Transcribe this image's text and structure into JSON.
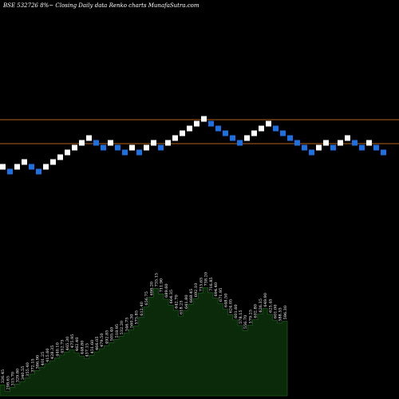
{
  "chart_data": {
    "type": "renko",
    "title": "BSE 532726  8%~  Closing Daily data  Renko  charts MunafaSutra.com",
    "colors": {
      "background": "#000000",
      "up_brick": "#ffffff",
      "down_brick": "#1e6fe0",
      "ref_line": "#b5651d",
      "volume_fill": "#0a2a0a",
      "volume_outline": "#1a5a1a"
    },
    "reference_lines": [
      150,
      180
    ],
    "bricks": [
      {
        "dir": "up",
        "level": 7
      },
      {
        "dir": "down",
        "level": 6
      },
      {
        "dir": "up",
        "level": 7
      },
      {
        "dir": "up",
        "level": 8
      },
      {
        "dir": "down",
        "level": 7
      },
      {
        "dir": "down",
        "level": 6
      },
      {
        "dir": "up",
        "level": 7
      },
      {
        "dir": "up",
        "level": 8
      },
      {
        "dir": "up",
        "level": 9
      },
      {
        "dir": "up",
        "level": 10
      },
      {
        "dir": "up",
        "level": 11
      },
      {
        "dir": "up",
        "level": 12
      },
      {
        "dir": "up",
        "level": 13
      },
      {
        "dir": "down",
        "level": 12
      },
      {
        "dir": "down",
        "level": 11
      },
      {
        "dir": "up",
        "level": 12
      },
      {
        "dir": "down",
        "level": 11
      },
      {
        "dir": "down",
        "level": 10
      },
      {
        "dir": "up",
        "level": 11
      },
      {
        "dir": "down",
        "level": 10
      },
      {
        "dir": "up",
        "level": 11
      },
      {
        "dir": "up",
        "level": 12
      },
      {
        "dir": "down",
        "level": 11
      },
      {
        "dir": "up",
        "level": 12
      },
      {
        "dir": "up",
        "level": 13
      },
      {
        "dir": "up",
        "level": 14
      },
      {
        "dir": "up",
        "level": 15
      },
      {
        "dir": "up",
        "level": 16
      },
      {
        "dir": "up",
        "level": 17
      },
      {
        "dir": "down",
        "level": 16
      },
      {
        "dir": "down",
        "level": 15
      },
      {
        "dir": "down",
        "level": 14
      },
      {
        "dir": "down",
        "level": 13
      },
      {
        "dir": "down",
        "level": 12
      },
      {
        "dir": "up",
        "level": 13
      },
      {
        "dir": "up",
        "level": 14
      },
      {
        "dir": "up",
        "level": 15
      },
      {
        "dir": "up",
        "level": 16
      },
      {
        "dir": "down",
        "level": 15
      },
      {
        "dir": "down",
        "level": 14
      },
      {
        "dir": "down",
        "level": 13
      },
      {
        "dir": "down",
        "level": 12
      },
      {
        "dir": "down",
        "level": 11
      },
      {
        "dir": "down",
        "level": 10
      },
      {
        "dir": "up",
        "level": 11
      },
      {
        "dir": "up",
        "level": 12
      },
      {
        "dir": "down",
        "level": 11
      },
      {
        "dir": "up",
        "level": 12
      },
      {
        "dir": "up",
        "level": 13
      },
      {
        "dir": "down",
        "level": 12
      },
      {
        "dir": "down",
        "level": 11
      },
      {
        "dir": "up",
        "level": 12
      },
      {
        "dir": "down",
        "level": 11
      },
      {
        "dir": "down",
        "level": 10
      }
    ],
    "volume_labels": [
      "326.45",
      "298.65",
      "315.70",
      "329.80",
      "340.55",
      "355.40",
      "372.15",
      "386.90",
      "401.25",
      "415.60",
      "428.35",
      "440.10",
      "452.75",
      "465.30",
      "475.95",
      "462.40",
      "448.80",
      "437.15",
      "451.60",
      "466.05",
      "479.50",
      "492.85",
      "505.40",
      "518.95",
      "532.20",
      "546.75",
      "560.30",
      "575.85",
      "612.40",
      "656.75",
      "698.20",
      "735.15",
      "711.90",
      "689.60",
      "664.35",
      "642.70",
      "618.25",
      "641.80",
      "668.45",
      "692.10",
      "715.65",
      "738.20",
      "716.85",
      "694.40",
      "671.95",
      "648.50",
      "624.05",
      "601.60",
      "578.15",
      "556.70",
      "579.25",
      "602.80",
      "626.35",
      "649.90",
      "625.45",
      "601.00",
      "588.55",
      "596.30"
    ]
  }
}
